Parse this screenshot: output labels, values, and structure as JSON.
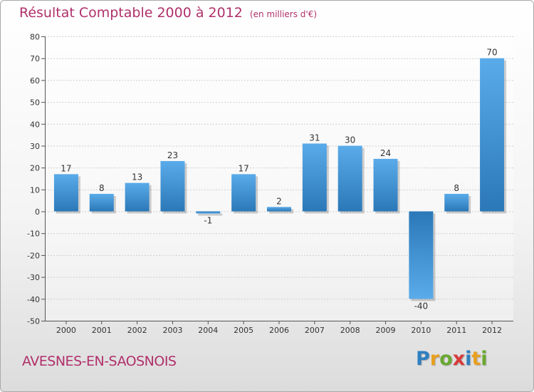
{
  "chart_data": {
    "type": "bar",
    "title": "Résultat Comptable 2000 à 2012",
    "subtitle": "(en milliers d'€)",
    "categories": [
      "2000",
      "2001",
      "2002",
      "2003",
      "2004",
      "2005",
      "2006",
      "2007",
      "2008",
      "2009",
      "2010",
      "2011",
      "2012"
    ],
    "values": [
      17,
      8,
      13,
      23,
      -1,
      17,
      2,
      31,
      30,
      24,
      -40,
      8,
      70
    ],
    "data_labels": [
      "17",
      "8",
      "13",
      "23",
      "-1",
      "17",
      "2",
      "31",
      "30",
      "24",
      "-40",
      "8",
      "70"
    ],
    "y_ticks": [
      80,
      70,
      60,
      50,
      40,
      30,
      20,
      10,
      0,
      -10,
      -20,
      -30,
      -40,
      -50
    ],
    "ylim": [
      -50,
      80
    ],
    "xlabel": "",
    "ylabel": "",
    "grid": true,
    "colors": {
      "bar_light": "#5aabea",
      "bar_dark": "#2b78b8",
      "title": "#b0306a"
    }
  },
  "commune": "AVESNES-EN-SAOSNOIS",
  "logo": {
    "letters": [
      "P",
      "r",
      "o",
      "x",
      "i",
      "t",
      "i"
    ]
  }
}
